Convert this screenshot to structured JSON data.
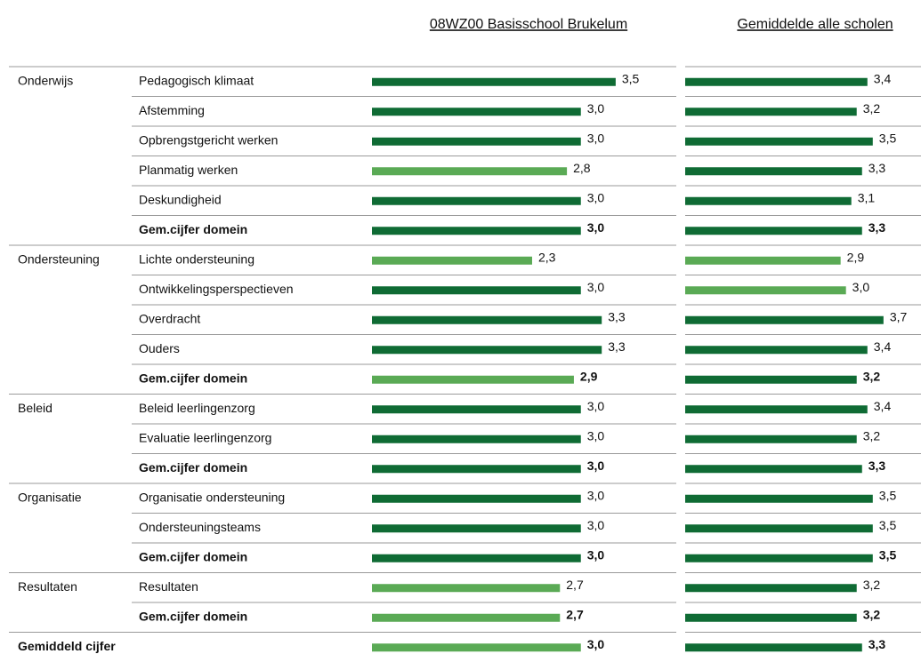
{
  "columns": {
    "school": {
      "title": "08WZ00 Basisschool Brukelum",
      "xlim": [
        0,
        4
      ]
    },
    "average": {
      "title": "Gemiddelde alle scholen",
      "xlim": [
        0,
        4.4
      ]
    }
  },
  "colors": {
    "dark": "#0f6b34",
    "light": "#5aaa55"
  },
  "groups": [
    {
      "domain": "Onderwijs",
      "rows": [
        {
          "label": "Pedagogisch klimaat",
          "school": {
            "value": 3.5,
            "label": "3,5",
            "color": "dark"
          },
          "average": {
            "value": 3.4,
            "label": "3,4",
            "color": "dark"
          }
        },
        {
          "label": "Afstemming",
          "school": {
            "value": 3.0,
            "label": "3,0",
            "color": "dark"
          },
          "average": {
            "value": 3.2,
            "label": "3,2",
            "color": "dark"
          }
        },
        {
          "label": "Opbrengstgericht werken",
          "school": {
            "value": 3.0,
            "label": "3,0",
            "color": "dark"
          },
          "average": {
            "value": 3.5,
            "label": "3,5",
            "color": "dark"
          }
        },
        {
          "label": "Planmatig werken",
          "school": {
            "value": 2.8,
            "label": "2,8",
            "color": "light"
          },
          "average": {
            "value": 3.3,
            "label": "3,3",
            "color": "dark"
          }
        },
        {
          "label": "Deskundigheid",
          "school": {
            "value": 3.0,
            "label": "3,0",
            "color": "dark"
          },
          "average": {
            "value": 3.1,
            "label": "3,1",
            "color": "dark"
          }
        },
        {
          "label": "Gem.cijfer domein",
          "bold": true,
          "school": {
            "value": 3.0,
            "label": "3,0",
            "color": "dark"
          },
          "average": {
            "value": 3.3,
            "label": "3,3",
            "color": "dark"
          }
        }
      ]
    },
    {
      "domain": "Ondersteuning",
      "rows": [
        {
          "label": "Lichte ondersteuning",
          "school": {
            "value": 2.3,
            "label": "2,3",
            "color": "light"
          },
          "average": {
            "value": 2.9,
            "label": "2,9",
            "color": "light"
          }
        },
        {
          "label": "Ontwikkelingsperspectieven",
          "school": {
            "value": 3.0,
            "label": "3,0",
            "color": "dark"
          },
          "average": {
            "value": 3.0,
            "label": "3,0",
            "color": "light"
          }
        },
        {
          "label": "Overdracht",
          "school": {
            "value": 3.3,
            "label": "3,3",
            "color": "dark"
          },
          "average": {
            "value": 3.7,
            "label": "3,7",
            "color": "dark"
          }
        },
        {
          "label": "Ouders",
          "school": {
            "value": 3.3,
            "label": "3,3",
            "color": "dark"
          },
          "average": {
            "value": 3.4,
            "label": "3,4",
            "color": "dark"
          }
        },
        {
          "label": "Gem.cijfer domein",
          "bold": true,
          "school": {
            "value": 2.9,
            "label": "2,9",
            "color": "light"
          },
          "average": {
            "value": 3.2,
            "label": "3,2",
            "color": "dark"
          }
        }
      ]
    },
    {
      "domain": "Beleid",
      "rows": [
        {
          "label": "Beleid leerlingenzorg",
          "school": {
            "value": 3.0,
            "label": "3,0",
            "color": "dark"
          },
          "average": {
            "value": 3.4,
            "label": "3,4",
            "color": "dark"
          }
        },
        {
          "label": "Evaluatie leerlingenzorg",
          "school": {
            "value": 3.0,
            "label": "3,0",
            "color": "dark"
          },
          "average": {
            "value": 3.2,
            "label": "3,2",
            "color": "dark"
          }
        },
        {
          "label": "Gem.cijfer domein",
          "bold": true,
          "school": {
            "value": 3.0,
            "label": "3,0",
            "color": "dark"
          },
          "average": {
            "value": 3.3,
            "label": "3,3",
            "color": "dark"
          }
        }
      ]
    },
    {
      "domain": "Organisatie",
      "rows": [
        {
          "label": "Organisatie ondersteuning",
          "school": {
            "value": 3.0,
            "label": "3,0",
            "color": "dark"
          },
          "average": {
            "value": 3.5,
            "label": "3,5",
            "color": "dark"
          }
        },
        {
          "label": "Ondersteuningsteams",
          "school": {
            "value": 3.0,
            "label": "3,0",
            "color": "dark"
          },
          "average": {
            "value": 3.5,
            "label": "3,5",
            "color": "dark"
          }
        },
        {
          "label": "Gem.cijfer domein",
          "bold": true,
          "school": {
            "value": 3.0,
            "label": "3,0",
            "color": "dark"
          },
          "average": {
            "value": 3.5,
            "label": "3,5",
            "color": "dark"
          }
        }
      ]
    },
    {
      "domain": "Resultaten",
      "rows": [
        {
          "label": "Resultaten",
          "school": {
            "value": 2.7,
            "label": "2,7",
            "color": "light"
          },
          "average": {
            "value": 3.2,
            "label": "3,2",
            "color": "dark"
          }
        },
        {
          "label": "Gem.cijfer domein",
          "bold": true,
          "school": {
            "value": 2.7,
            "label": "2,7",
            "color": "light"
          },
          "average": {
            "value": 3.2,
            "label": "3,2",
            "color": "dark"
          }
        }
      ]
    }
  ],
  "total": {
    "label": "Gemiddeld cijfer",
    "school": {
      "value": 3.0,
      "label": "3,0",
      "color": "light"
    },
    "average": {
      "value": 3.3,
      "label": "3,3",
      "color": "dark"
    }
  }
}
